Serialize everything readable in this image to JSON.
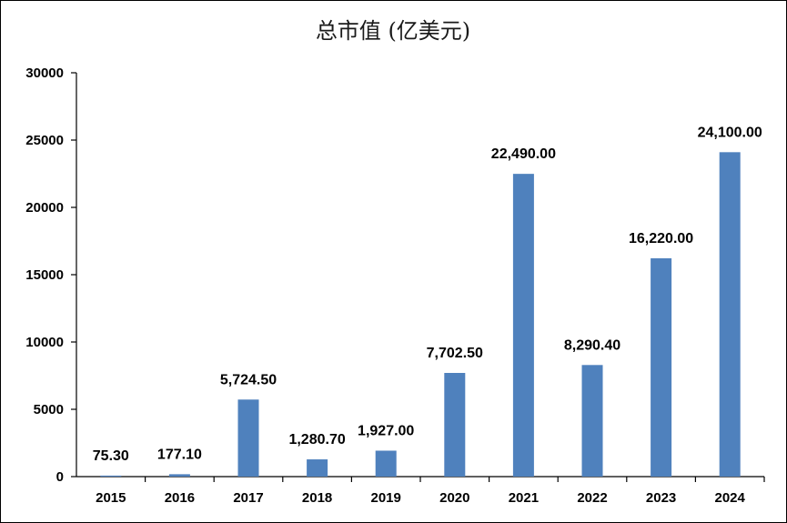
{
  "chart_data": {
    "type": "bar",
    "title": "总市值 (亿美元)",
    "xlabel": "",
    "ylabel": "",
    "categories": [
      "2015",
      "2016",
      "2017",
      "2018",
      "2019",
      "2020",
      "2021",
      "2022",
      "2023",
      "2024"
    ],
    "values": [
      75.3,
      177.1,
      5724.5,
      1280.7,
      1927.0,
      7702.5,
      22490.0,
      8290.4,
      16220.0,
      24100.0
    ],
    "data_labels": [
      "75.30",
      "177.10",
      "5,724.50",
      "1,280.70",
      "1,927.00",
      "7,702.50",
      "22,490.00",
      "8,290.40",
      "16,220.00",
      "24,100.00"
    ],
    "ylim": [
      0,
      30000
    ],
    "yticks": [
      0,
      5000,
      10000,
      15000,
      20000,
      25000,
      30000
    ],
    "ytick_labels": [
      "0",
      "5000",
      "10000",
      "15000",
      "20000",
      "25000",
      "30000"
    ],
    "grid": false,
    "legend": "none",
    "colors": {
      "bar": "#4f81bd",
      "axis": "#000000"
    }
  }
}
